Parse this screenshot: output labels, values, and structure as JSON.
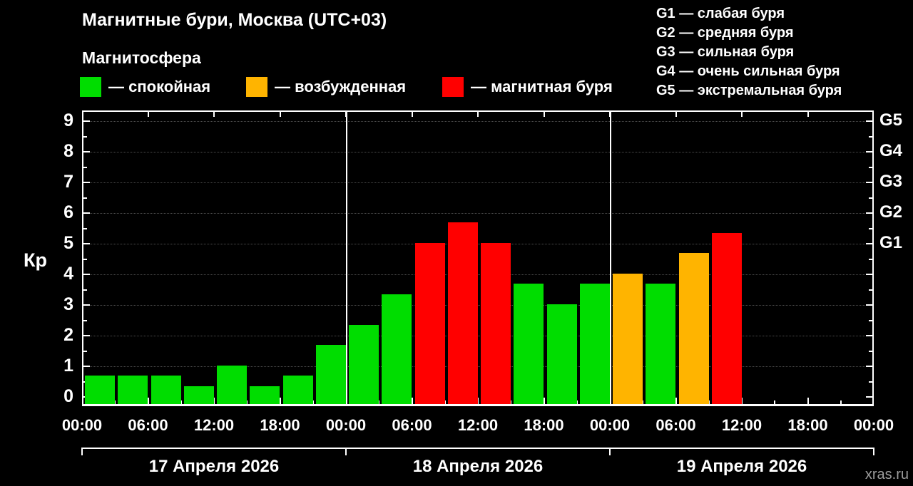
{
  "header": {
    "title": "Магнитные бури, Москва (UTC+03)",
    "subtitle": "Магнитосфера",
    "watermark": "xras.ru"
  },
  "legend": {
    "items": [
      {
        "label": "— спокойная",
        "level": "quiet"
      },
      {
        "label": "— возбужденная",
        "level": "excited"
      },
      {
        "label": "— магнитная буря",
        "level": "storm"
      }
    ]
  },
  "storm_scale": {
    "items": [
      {
        "label": "G1 — слабая буря"
      },
      {
        "label": "G2 — средняя буря"
      },
      {
        "label": "G3 — сильная буря"
      },
      {
        "label": "G4 — очень сильная буря"
      },
      {
        "label": "G5 — экстремальная буря"
      }
    ]
  },
  "chart_data": {
    "type": "bar",
    "title": "Магнитные бури, Москва (UTC+03)",
    "ylabel": "Кр",
    "ylim": [
      0,
      9
    ],
    "yticks": [
      0,
      1,
      2,
      3,
      4,
      5,
      6,
      7,
      8,
      9
    ],
    "right_scale": [
      {
        "label": "G1",
        "value": 5
      },
      {
        "label": "G2",
        "value": 6
      },
      {
        "label": "G3",
        "value": 7
      },
      {
        "label": "G4",
        "value": 8
      },
      {
        "label": "G5",
        "value": 9
      }
    ],
    "x_tick_labels": [
      "00:00",
      "06:00",
      "12:00",
      "18:00",
      "00:00",
      "06:00",
      "12:00",
      "18:00",
      "00:00",
      "06:00",
      "12:00",
      "18:00",
      "00:00"
    ],
    "days": [
      "17 Апреля 2026",
      "18 Апреля 2026",
      "19 Апреля 2026"
    ],
    "bars_per_day": 8,
    "interval_hours": 3,
    "grid": "horizontal-dotted",
    "series": [
      {
        "day": "17 Апреля 2026",
        "values": [
          0.67,
          0.67,
          0.67,
          0.33,
          1.0,
          0.33,
          0.67,
          1.67
        ],
        "levels": [
          "quiet",
          "quiet",
          "quiet",
          "quiet",
          "quiet",
          "quiet",
          "quiet",
          "quiet"
        ]
      },
      {
        "day": "18 Апреля 2026",
        "values": [
          2.33,
          3.33,
          5.0,
          5.67,
          5.0,
          3.67,
          3.0,
          3.67
        ],
        "levels": [
          "quiet",
          "quiet",
          "storm",
          "storm",
          "storm",
          "quiet",
          "quiet",
          "quiet"
        ]
      },
      {
        "day": "19 Апреля 2026",
        "values": [
          4.0,
          3.67,
          4.67,
          5.33,
          null,
          null,
          null,
          null
        ],
        "levels": [
          "excited",
          "quiet",
          "excited",
          "storm",
          null,
          null,
          null,
          null
        ]
      }
    ],
    "level_colors": {
      "quiet": "#00dd00",
      "excited": "#ffb400",
      "storm": "#ff0000"
    },
    "axis_color": "#ffffff",
    "background_color": "#000000"
  }
}
